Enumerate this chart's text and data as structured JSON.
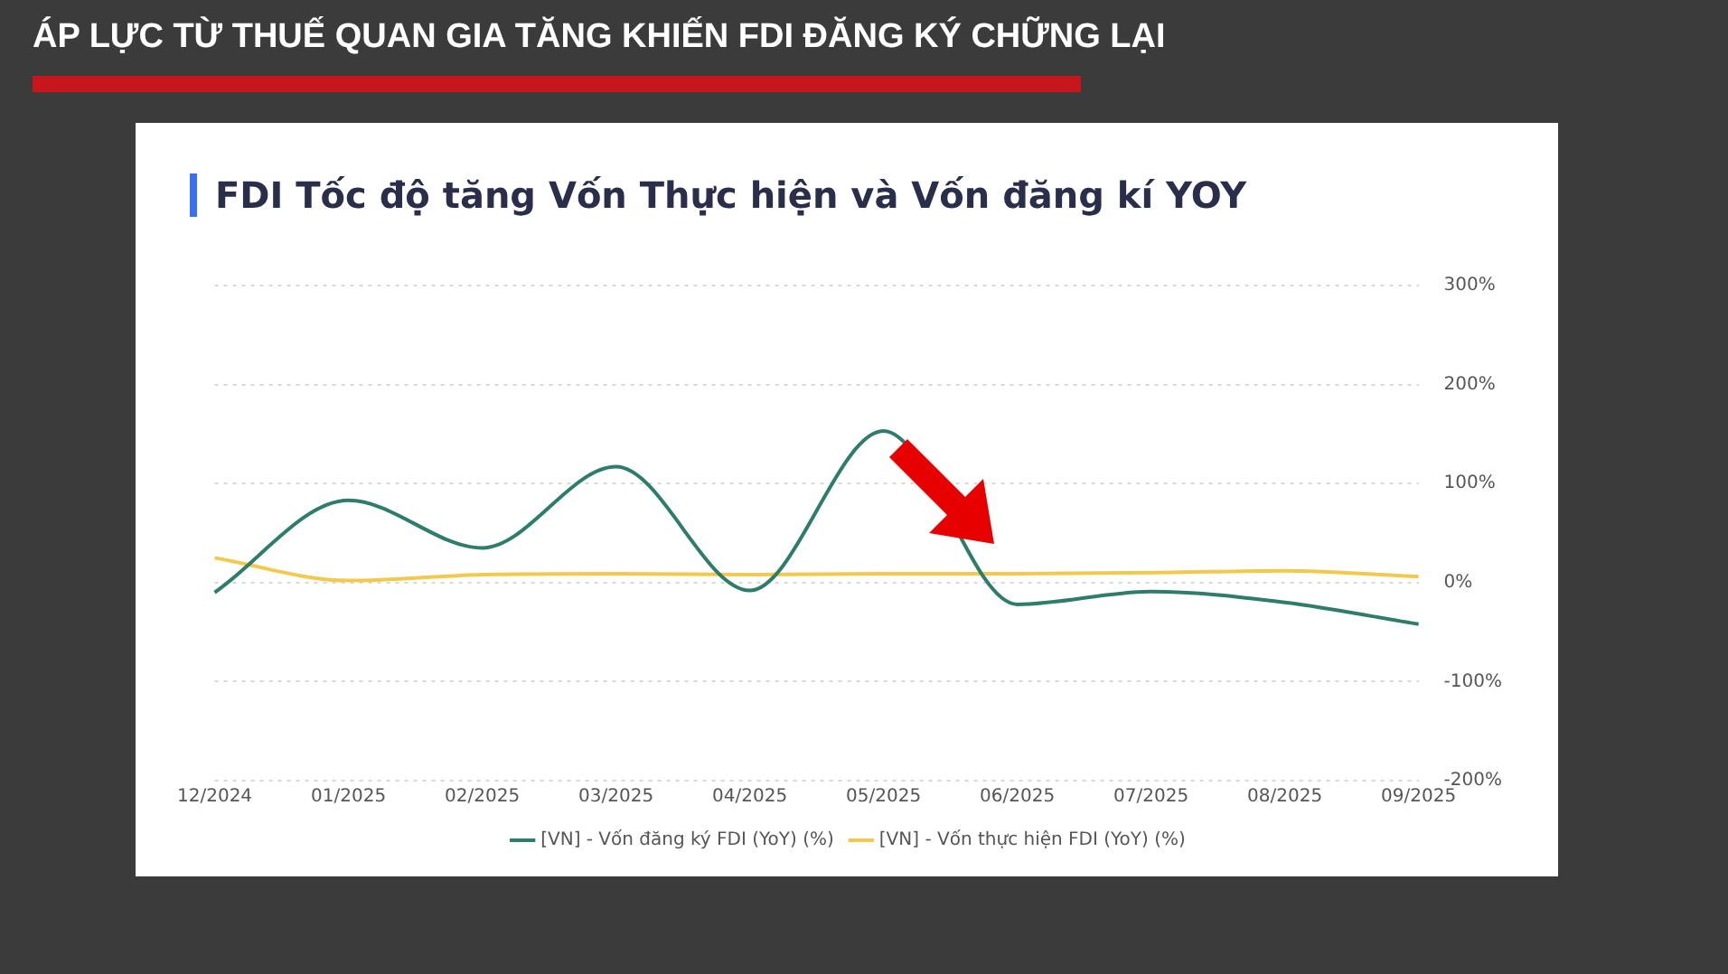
{
  "chart_data": {
    "type": "line",
    "title": "ÁP LỰC TỪ THUẾ QUAN GIA TĂNG KHIẾN FDI ĐĂNG KÝ CHỮNG LẠI",
    "subtitle": "FDI Tốc độ tăng Vốn Thực hiện và Vốn đăng kí YOY",
    "categories": [
      "12/2024",
      "01/2025",
      "02/2025",
      "03/2025",
      "04/2025",
      "05/2025",
      "06/2025",
      "07/2025",
      "08/2025",
      "09/2025"
    ],
    "series": [
      {
        "name": "[VN] - Vốn đăng ký FDI (YoY) (%)",
        "color": "#2e7d6b",
        "values": [
          -10,
          83,
          35,
          117,
          -8,
          153,
          -22,
          -9,
          -20,
          -42
        ]
      },
      {
        "name": "[VN] - Vốn thực hiện FDI (YoY) (%)",
        "color": "#f2c94c",
        "values": [
          25,
          2,
          8,
          9,
          8,
          9,
          9,
          10,
          12,
          6
        ]
      }
    ],
    "ylim": [
      -200,
      300
    ],
    "yticks": [
      {
        "value": -200,
        "label": "-200%"
      },
      {
        "value": -100,
        "label": "-100%"
      },
      {
        "value": 0,
        "label": "0%"
      },
      {
        "value": 100,
        "label": "100%"
      },
      {
        "value": 200,
        "label": "200%"
      },
      {
        "value": 300,
        "label": "300%"
      }
    ],
    "grid": "y",
    "legend": "bottom",
    "marker": "none",
    "line_style": "solid"
  }
}
